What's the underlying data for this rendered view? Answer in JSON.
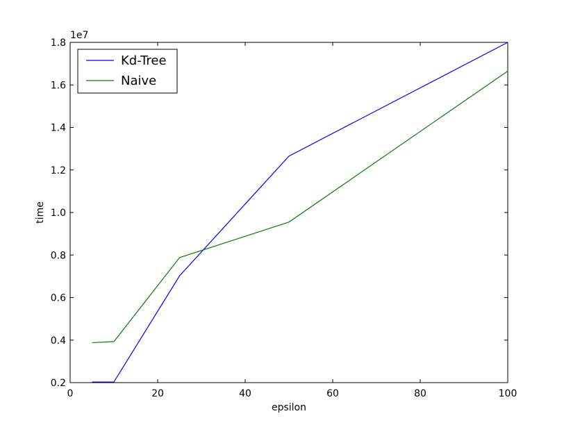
{
  "chart_data": {
    "type": "line",
    "title": "",
    "xlabel": "epsilon",
    "ylabel": "time",
    "xlim": [
      0,
      100
    ],
    "ylim": [
      0.2,
      1.8
    ],
    "y_multiplier_label": "1e7",
    "x_ticks": [
      0,
      20,
      40,
      60,
      80,
      100
    ],
    "y_ticks": [
      0.2,
      0.4,
      0.6,
      0.8,
      1.0,
      1.2,
      1.4,
      1.6,
      1.8
    ],
    "x_tick_labels": [
      "0",
      "20",
      "40",
      "60",
      "80",
      "100"
    ],
    "y_tick_labels": [
      "0.2",
      "0.4",
      "0.6",
      "0.8",
      "1.0",
      "1.2",
      "1.4",
      "1.6",
      "1.8"
    ],
    "grid": false,
    "legend_position": "top-left",
    "series": [
      {
        "name": "Kd-Tree",
        "color": "#0000ff",
        "x": [
          5,
          10,
          25,
          50,
          100
        ],
        "y": [
          0.203,
          0.203,
          0.702,
          1.265,
          1.8
        ]
      },
      {
        "name": "Naive",
        "color": "#008000",
        "x": [
          5,
          10,
          25,
          50,
          100
        ],
        "y": [
          0.388,
          0.393,
          0.788,
          0.955,
          1.665
        ]
      }
    ]
  }
}
